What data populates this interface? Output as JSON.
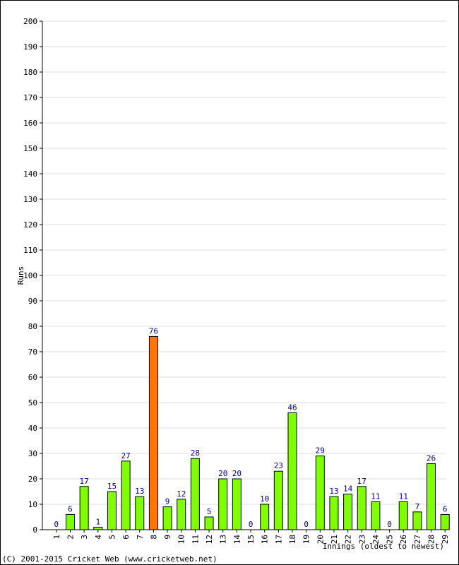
{
  "chart_data": {
    "type": "bar",
    "title": "",
    "xlabel": "Innings (oldest to newest)",
    "ylabel": "Runs",
    "ylim": [
      0,
      200
    ],
    "y_ticks": [
      0,
      10,
      20,
      30,
      40,
      50,
      60,
      70,
      80,
      90,
      100,
      110,
      120,
      130,
      140,
      150,
      160,
      170,
      180,
      190,
      200
    ],
    "categories": [
      "1",
      "2",
      "3",
      "4",
      "5",
      "6",
      "7",
      "8",
      "9",
      "10",
      "11",
      "12",
      "13",
      "14",
      "15",
      "16",
      "17",
      "18",
      "19",
      "20",
      "21",
      "22",
      "23",
      "24",
      "25",
      "26",
      "27",
      "28",
      "29"
    ],
    "values": [
      0,
      6,
      17,
      1,
      15,
      27,
      13,
      76,
      9,
      12,
      28,
      5,
      20,
      20,
      0,
      10,
      23,
      46,
      0,
      29,
      13,
      14,
      17,
      11,
      0,
      11,
      7,
      26,
      6
    ],
    "highlight_index": 7,
    "grid": true,
    "colors": {
      "bar": "#7fff00",
      "highlight_bar": "#ff7700",
      "bar_stroke": "#000000",
      "value_label": "#000099",
      "grid": "#dddddd",
      "axis": "#000000"
    }
  },
  "footer": {
    "copyright": "(C) 2001-2015 Cricket Web (www.cricketweb.net)"
  }
}
